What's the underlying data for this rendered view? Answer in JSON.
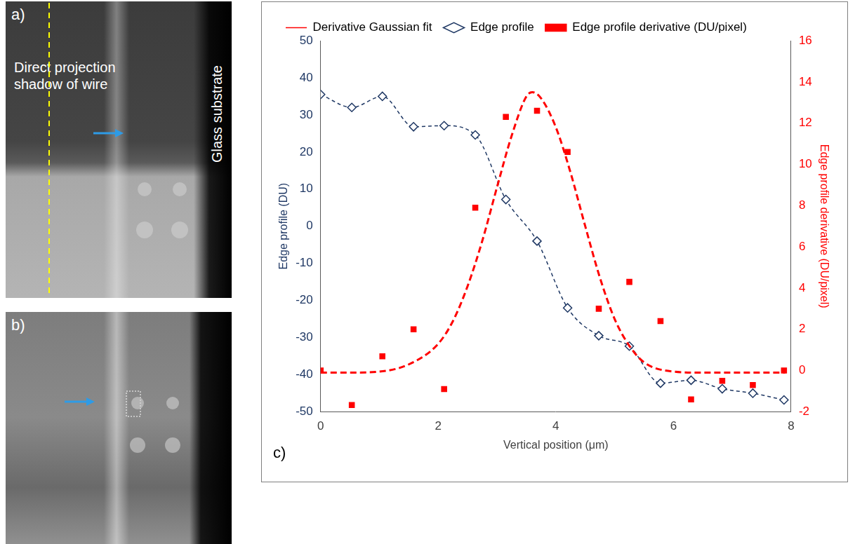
{
  "images": [
    {
      "label": "a)",
      "texts": [
        "Direct projection shadow of wire",
        "Glass substrate"
      ]
    },
    {
      "label": "b)"
    }
  ],
  "chart_data": {
    "type": "scatter",
    "annotations": [
      "c)"
    ],
    "x_label": "Vertical position (μm)",
    "y_label": "Edge profile (DU)",
    "y2_label": "Edge profile derivative (DU/pixel)",
    "xlim": [
      0,
      8
    ],
    "xticks": [
      0,
      2,
      4,
      6,
      8
    ],
    "ylim": [
      -50,
      50
    ],
    "yticks": [
      -50,
      -40,
      -30,
      -20,
      -10,
      0,
      10,
      20,
      30,
      40,
      50
    ],
    "y2lim": [
      -2,
      16
    ],
    "y2ticks": [
      -2,
      0,
      2,
      4,
      6,
      8,
      10,
      12,
      14,
      16
    ],
    "grid": false,
    "legend": "top",
    "series": [
      {
        "name": "Edge profile",
        "color": "#1f3864",
        "marker": "diamond",
        "line_style": "dashed",
        "x": [
          0,
          0.53,
          1.05,
          1.58,
          2.1,
          2.63,
          3.15,
          3.68,
          4.2,
          4.73,
          5.25,
          5.78,
          6.3,
          6.83,
          7.35,
          7.88
        ],
        "values": [
          35.5,
          32,
          35,
          26.8,
          27.1,
          24.6,
          7.2,
          -4,
          -22,
          -29.5,
          -32.3,
          -42.3,
          -41.5,
          -43.8,
          -45,
          -46.8
        ]
      },
      {
        "name": "Edge profile derivative (DU/pixel)",
        "color": "#ff0000",
        "marker": "square",
        "line_style": "none",
        "axis": "y2",
        "x": [
          0,
          0.53,
          1.05,
          1.58,
          2.1,
          2.63,
          3.15,
          3.68,
          4.2,
          4.73,
          5.25,
          5.78,
          6.3,
          6.83,
          7.35,
          7.88
        ],
        "values": [
          0,
          -1.67,
          0.69,
          2.0,
          -0.9,
          7.9,
          12.3,
          12.6,
          10.6,
          3.0,
          4.3,
          2.4,
          -1.4,
          -0.5,
          -0.7,
          0
        ]
      },
      {
        "name": "Derivative Gaussian fit",
        "color": "#ff0000",
        "marker": "none",
        "line_style": "dashed",
        "axis": "y2",
        "x": [
          0,
          0.5,
          1,
          1.5,
          2,
          2.25,
          2.5,
          2.75,
          3,
          3.25,
          3.5,
          3.6,
          3.75,
          4,
          4.25,
          4.5,
          4.75,
          5,
          5.25,
          5.5,
          6,
          6.5,
          7,
          7.5,
          7.9
        ],
        "values": [
          -0.1,
          -0.1,
          -0.05,
          0.3,
          1.3,
          2.4,
          4.1,
          6.3,
          8.9,
          11.4,
          13.3,
          13.5,
          13.2,
          11.8,
          9.6,
          7.0,
          4.5,
          2.5,
          1.2,
          0.4,
          -0.05,
          -0.1,
          -0.1,
          -0.1,
          -0.1
        ]
      }
    ]
  }
}
